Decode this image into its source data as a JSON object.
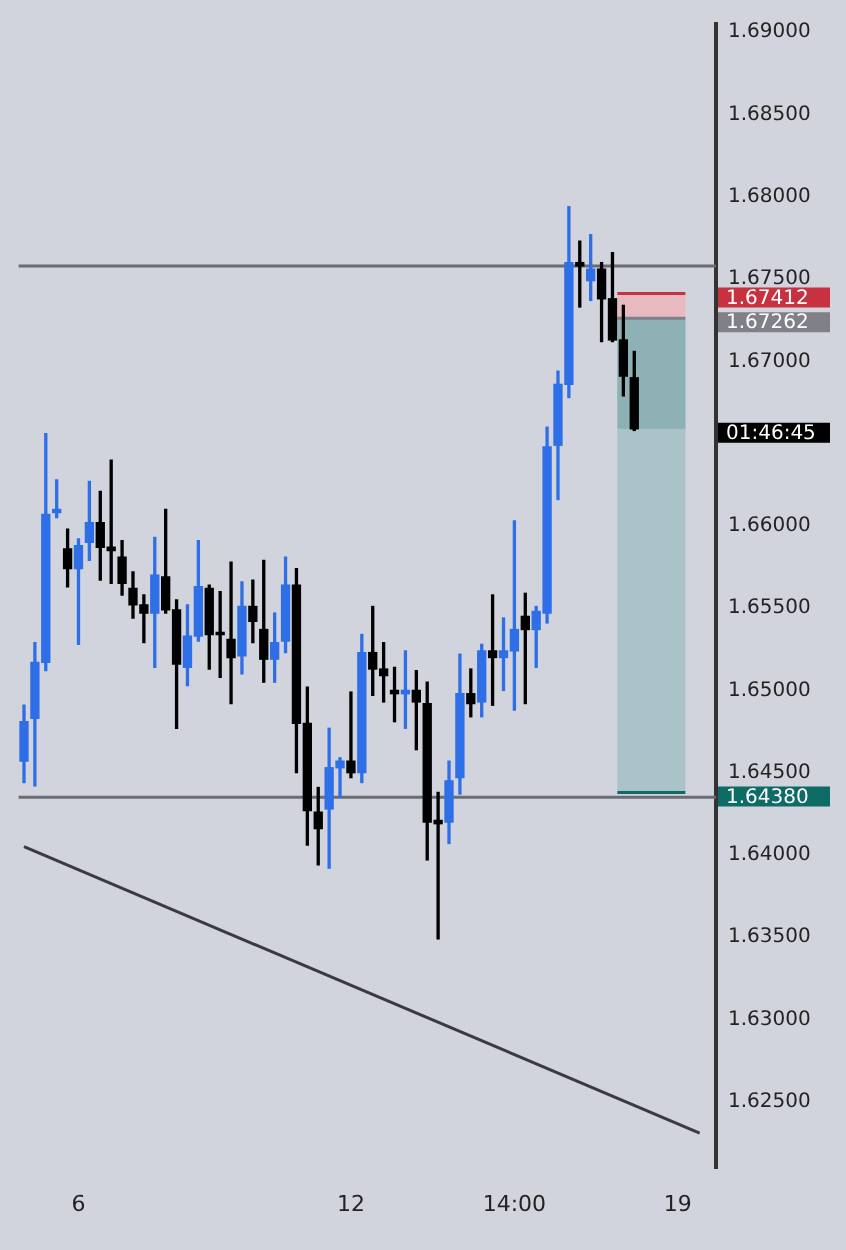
{
  "chart_data": {
    "type": "candlestick",
    "categories": [
      null,
      null,
      null,
      null,
      null,
      "6",
      null,
      null,
      null,
      null,
      null,
      null,
      null,
      null,
      null,
      null,
      null,
      null,
      null,
      null,
      null,
      null,
      null,
      null,
      null,
      null,
      null,
      null,
      null,
      null,
      "12",
      null,
      null,
      null,
      null,
      null,
      null,
      null,
      null,
      null,
      null,
      null,
      null,
      null,
      null,
      "14:00",
      null,
      null,
      null,
      null,
      null,
      null,
      null,
      null,
      null,
      null,
      null,
      null,
      null,
      null,
      "19",
      null,
      null,
      null
    ],
    "ohlc": [
      [
        1.6457,
        1.6491,
        1.6444,
        1.6481
      ],
      [
        1.6483,
        1.6529,
        1.6442,
        1.6517
      ],
      [
        1.6517,
        1.6656,
        1.6512,
        1.6607
      ],
      [
        1.6608,
        1.6628,
        1.6605,
        1.661
      ],
      [
        1.6586,
        1.6598,
        1.6563,
        1.6574
      ],
      [
        1.6574,
        1.6592,
        1.6528,
        1.6588
      ],
      [
        1.659,
        1.6627,
        1.6579,
        1.6602
      ],
      [
        1.6602,
        1.6621,
        1.6567,
        1.6587
      ],
      [
        1.6587,
        1.664,
        1.6565,
        1.6585
      ],
      [
        1.6581,
        1.6591,
        1.6558,
        1.6565
      ],
      [
        1.6562,
        1.6572,
        1.6544,
        1.6552
      ],
      [
        1.6552,
        1.6558,
        1.6529,
        1.6547
      ],
      [
        1.6547,
        1.6593,
        1.6514,
        1.657
      ],
      [
        1.6569,
        1.661,
        1.6547,
        1.6549
      ],
      [
        1.6549,
        1.6555,
        1.6477,
        1.6516
      ],
      [
        1.6514,
        1.6552,
        1.6503,
        1.6533
      ],
      [
        1.6533,
        1.6591,
        1.653,
        1.6563
      ],
      [
        1.6562,
        1.6564,
        1.6513,
        1.6534
      ],
      [
        1.6535,
        1.656,
        1.6508,
        1.6534
      ],
      [
        1.6531,
        1.6578,
        1.6492,
        1.652
      ],
      [
        1.6521,
        1.6566,
        1.651,
        1.6551
      ],
      [
        1.6551,
        1.6567,
        1.6529,
        1.6542
      ],
      [
        1.6537,
        1.6579,
        1.6505,
        1.6519
      ],
      [
        1.6519,
        1.6547,
        1.6505,
        1.6529
      ],
      [
        1.653,
        1.6581,
        1.6523,
        1.6564
      ],
      [
        1.6564,
        1.6574,
        1.645,
        1.648
      ],
      [
        1.648,
        1.6502,
        1.6406,
        1.6427
      ],
      [
        1.6426,
        1.6441,
        1.6394,
        1.6416
      ],
      [
        1.6428,
        1.6477,
        1.6392,
        1.6453
      ],
      [
        1.6453,
        1.6459,
        1.6435,
        1.6457
      ],
      [
        1.6457,
        1.6499,
        1.6447,
        1.645
      ],
      [
        1.645,
        1.6534,
        1.6444,
        1.6523
      ],
      [
        1.6523,
        1.6551,
        1.6497,
        1.6513
      ],
      [
        1.6513,
        1.6529,
        1.6493,
        1.6509
      ],
      [
        1.65,
        1.6514,
        1.6481,
        1.6498
      ],
      [
        1.6498,
        1.6524,
        1.6477,
        1.65
      ],
      [
        1.65,
        1.6512,
        1.6464,
        1.6493
      ],
      [
        1.6492,
        1.6505,
        1.6397,
        1.642
      ],
      [
        1.6421,
        1.6438,
        1.6349,
        1.6419
      ],
      [
        1.642,
        1.6457,
        1.6407,
        1.6445
      ],
      [
        1.6447,
        1.6522,
        1.6437,
        1.6498
      ],
      [
        1.6498,
        1.6513,
        1.6484,
        1.6492
      ],
      [
        1.6493,
        1.6528,
        1.6484,
        1.6524
      ],
      [
        1.6524,
        1.6558,
        1.6491,
        1.652
      ],
      [
        1.652,
        1.6544,
        1.65,
        1.6524
      ],
      [
        1.6524,
        1.6603,
        1.6488,
        1.6537
      ],
      [
        1.6545,
        1.6559,
        1.6492,
        1.6537
      ],
      [
        1.6537,
        1.6551,
        1.6514,
        1.6548
      ],
      [
        1.6547,
        1.666,
        1.6541,
        1.6648
      ],
      [
        1.6649,
        1.6694,
        1.6616,
        1.6686
      ],
      [
        1.6686,
        1.6794,
        1.6678,
        1.676
      ],
      [
        1.676,
        1.6773,
        1.6733,
        1.6758
      ],
      [
        1.6749,
        1.6777,
        1.6737,
        1.6756
      ],
      [
        1.6756,
        1.676,
        1.6712,
        1.6738
      ],
      [
        1.6738,
        1.6766,
        1.6712,
        1.6713
      ],
      [
        1.6713,
        1.6734,
        1.6679,
        1.6691
      ],
      [
        1.669,
        1.6706,
        1.6658,
        1.6659
      ],
      null,
      null,
      null,
      null,
      null,
      null,
      null
    ],
    "series": [
      {
        "type": "line",
        "values": [
          1.6405,
          null,
          null,
          null,
          null,
          null,
          null,
          null,
          null,
          null,
          null,
          null,
          null,
          null,
          null,
          null,
          null,
          null,
          null,
          null,
          null,
          null,
          null,
          null,
          null,
          null,
          null,
          null,
          null,
          null,
          null,
          null,
          null,
          null,
          null,
          null,
          null,
          null,
          null,
          null,
          null,
          null,
          null,
          null,
          null,
          null,
          null,
          null,
          null,
          null,
          null,
          null,
          null,
          null,
          null,
          null,
          null,
          null,
          null,
          null,
          null,
          null,
          1.6231,
          null
        ],
        "color": "#3a3a44"
      }
    ],
    "ref_lines": [
      {
        "axis": "y",
        "value": 1.6758,
        "color": "#6b6b73"
      },
      {
        "axis": "y",
        "value": 1.6435,
        "color": "#6b6b73"
      },
      {
        "axis": "y",
        "value": 1.67412,
        "label": "1.67412",
        "color": "#c8313f"
      },
      {
        "axis": "y",
        "value": 1.67262,
        "label": "1.67262",
        "color": "#7f8088"
      },
      {
        "axis": "y",
        "value": 1.6438,
        "label": "1.64380",
        "color": "#0e6b66"
      }
    ],
    "bands": [
      {
        "axis": "y",
        "from": 1.6438,
        "to": 1.67262,
        "color": "#a9c3c8"
      },
      {
        "axis": "y",
        "from": 1.6659,
        "to": 1.67262,
        "color": "#8eb1b6"
      },
      {
        "axis": "y",
        "from": 1.67262,
        "to": 1.67412,
        "color": "#e8b9c0"
      }
    ],
    "annotations": [
      "01:46:45"
    ],
    "ylim": [
      1.621,
      1.6905
    ],
    "yticks": [
      {
        "value": 1.625,
        "label": "1.62500"
      },
      {
        "value": 1.63,
        "label": "1.63000"
      },
      {
        "value": 1.635,
        "label": "1.63500"
      },
      {
        "value": 1.64,
        "label": "1.64000"
      },
      {
        "value": 1.645,
        "label": "1.64500"
      },
      {
        "value": 1.65,
        "label": "1.65000"
      },
      {
        "value": 1.655,
        "label": "1.65500"
      },
      {
        "value": 1.66,
        "label": "1.66000"
      },
      {
        "value": 1.67,
        "label": "1.67000"
      },
      {
        "value": 1.675,
        "label": "1.67500"
      },
      {
        "value": 1.68,
        "label": "1.68000"
      },
      {
        "value": 1.685,
        "label": "1.68500"
      },
      {
        "value": 1.69,
        "label": "1.69000"
      }
    ]
  }
}
